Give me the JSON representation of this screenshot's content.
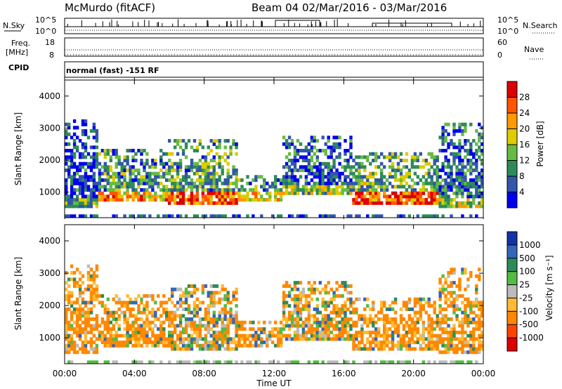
{
  "header": {
    "station_title": "McMurdo (fitACF)",
    "beam_title": "Beam 04  02/Mar/2016 - 03/Mar/2016"
  },
  "status_panel": {
    "left_labels": {
      "nsky": "N.Sky",
      "freq": "Freq.",
      "mhz": "[MHz]",
      "cpid": "CPID"
    },
    "right_labels": {
      "nsearch": "N.Search",
      "nave": "Nave"
    },
    "nsky_ticks": [
      "10^5",
      "10^0"
    ],
    "nsearch_ticks": [
      "10^5",
      "10^0"
    ],
    "freq_ticks": [
      "18",
      "8"
    ],
    "nave_ticks": [
      "60",
      "0"
    ],
    "cpid_text": "normal (fast) -151 RF"
  },
  "chart_data": [
    {
      "type": "heatmap",
      "name": "power",
      "xlabel": "",
      "ylabel": "Slant Range [km]",
      "colorbar_label": "Power [dB]",
      "y_ticks": [
        "1000",
        "2000",
        "3000",
        "4000"
      ],
      "ylim": [
        200,
        4500
      ],
      "colorbar_ticks": [
        "4",
        "8",
        "12",
        "16",
        "20",
        "24",
        "28"
      ],
      "colors": [
        "#0000ee",
        "#3355aa",
        "#2e8b57",
        "#66bb44",
        "#ddcc00",
        "#ff9900",
        "#ff5500",
        "#dd0000"
      ],
      "bands": [
        {
          "start": 0.0,
          "end": 2.0,
          "low": 500,
          "high": 3300,
          "intensity": 0.35
        },
        {
          "start": 2.0,
          "end": 6.0,
          "low": 700,
          "high": 2300,
          "intensity": 0.7
        },
        {
          "start": 6.0,
          "end": 10.0,
          "low": 650,
          "high": 2700,
          "intensity": 0.8
        },
        {
          "start": 10.0,
          "end": 12.5,
          "low": 700,
          "high": 1500,
          "intensity": 0.65
        },
        {
          "start": 12.5,
          "end": 16.5,
          "low": 900,
          "high": 2800,
          "intensity": 0.45
        },
        {
          "start": 16.5,
          "end": 21.5,
          "low": 650,
          "high": 2200,
          "intensity": 0.85
        },
        {
          "start": 21.5,
          "end": 24.0,
          "low": 500,
          "high": 3200,
          "intensity": 0.5
        }
      ]
    },
    {
      "type": "heatmap",
      "name": "velocity",
      "xlabel": "Time UT",
      "ylabel": "Slant Range [km]",
      "colorbar_label": "Velocity [m s⁻¹]",
      "y_ticks": [
        "1000",
        "2000",
        "3000",
        "4000"
      ],
      "ylim": [
        200,
        4500
      ],
      "colorbar_ticks": [
        "1000",
        "500",
        "100",
        "25",
        "-25",
        "-100",
        "-500",
        "-1000"
      ],
      "colors": [
        "#1133aa",
        "#3366bb",
        "#2e8b57",
        "#55bb44",
        "#bbbbbb",
        "#ffbb33",
        "#ff8800",
        "#ff4400",
        "#dd0000"
      ],
      "x_ticks": [
        "00:00",
        "04:00",
        "08:00",
        "12:00",
        "16:00",
        "20:00",
        "00:00"
      ],
      "x_range_hours": [
        0,
        24
      ],
      "bands": [
        {
          "start": 0.0,
          "end": 2.0,
          "low": 500,
          "high": 3300,
          "mix": 0.85
        },
        {
          "start": 2.0,
          "end": 6.0,
          "low": 700,
          "high": 2300,
          "mix": 0.8
        },
        {
          "start": 6.0,
          "end": 10.0,
          "low": 650,
          "high": 2700,
          "mix": 0.6
        },
        {
          "start": 10.0,
          "end": 12.5,
          "low": 700,
          "high": 1500,
          "mix": 0.7
        },
        {
          "start": 12.5,
          "end": 16.5,
          "low": 900,
          "high": 2800,
          "mix": 0.6
        },
        {
          "start": 16.5,
          "end": 21.5,
          "low": 650,
          "high": 2200,
          "mix": 0.85
        },
        {
          "start": 21.5,
          "end": 24.0,
          "low": 500,
          "high": 3200,
          "mix": 0.8
        }
      ]
    }
  ]
}
